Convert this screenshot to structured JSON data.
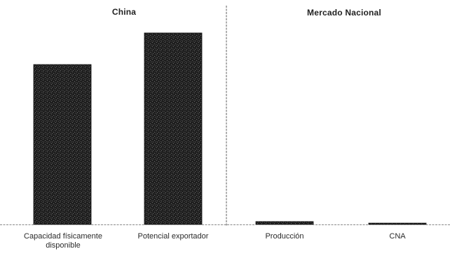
{
  "chart_data": [
    {
      "type": "bar",
      "title": "China",
      "categories": [
        "Capacidad físicamente disponible",
        "Potencial exportador"
      ],
      "values": [
        83.5,
        100
      ],
      "ylim": [
        0,
        100
      ],
      "grid": false
    },
    {
      "type": "bar",
      "title": "Mercado Nacional",
      "categories": [
        "Producción",
        "CNA"
      ],
      "values": [
        1.5,
        0.7
      ],
      "ylim": [
        0,
        100
      ],
      "grid": false
    }
  ],
  "colors": {
    "bar": "#1f1f1f",
    "bar_speckle": "#6a6a6a",
    "axis": "#8a8a8a",
    "divider": "#7a7a7a"
  }
}
